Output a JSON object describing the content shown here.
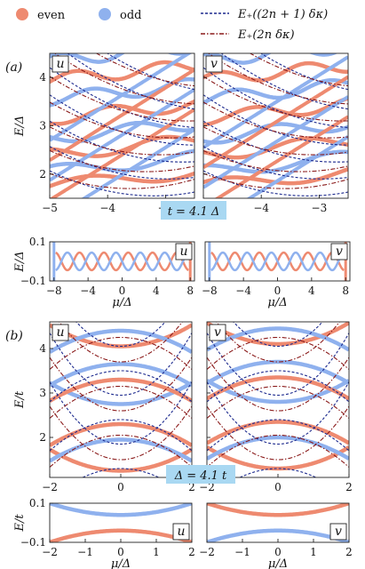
{
  "legend": {
    "even": "even",
    "odd": "odd",
    "dash1": "E₊((2n + 1) δκ)",
    "dash2": "E₊(2n δκ)"
  },
  "colors": {
    "even": "#ee8a70",
    "odd": "#8fb1ee",
    "dashed": "#1d2a8e",
    "dashdot": "#8a1a1a",
    "badge": "#a9d8f2"
  },
  "panel_labels": {
    "a": "(a)",
    "b": "(b)"
  },
  "chart_data": [
    {
      "id": "a_u",
      "type": "line",
      "tag": "u",
      "xlim": [
        -5,
        -2.5
      ],
      "ylim": [
        1.5,
        4.5
      ],
      "xticks": [
        -5,
        -4,
        -3
      ],
      "yticks": [
        2,
        3,
        4
      ],
      "xtick_labels": [
        "−5",
        "−4",
        "−3"
      ],
      "ytick_labels": [
        "2",
        "3",
        "4"
      ],
      "ylabel": "E/Δ",
      "xlabel": ""
    },
    {
      "id": "a_v",
      "type": "line",
      "tag": "v",
      "xlim": [
        -5,
        -2.5
      ],
      "ylim": [
        1.5,
        4.5
      ],
      "xticks": [
        -5,
        -4,
        -3
      ],
      "yticks": [
        2,
        3,
        4
      ],
      "xtick_labels": [
        "−5",
        "−4",
        "−3"
      ],
      "ytick_labels": [],
      "ylabel": "",
      "xlabel": ""
    },
    {
      "id": "a_u_low",
      "type": "line",
      "tag": "u",
      "xlim": [
        -8.5,
        8.5
      ],
      "ylim": [
        -0.1,
        0.1
      ],
      "xticks": [
        -8,
        -4,
        0,
        4,
        8
      ],
      "yticks": [
        -0.1,
        0.1
      ],
      "xtick_labels": [
        "−8",
        "−4",
        "0",
        "4",
        "8"
      ],
      "ytick_labels": [
        "−0.1",
        "0.1"
      ],
      "ylabel": "E/Δ",
      "xlabel": "μ/Δ"
    },
    {
      "id": "a_v_low",
      "type": "line",
      "tag": "v",
      "xlim": [
        -8.5,
        8.5
      ],
      "ylim": [
        -0.1,
        0.1
      ],
      "xticks": [
        -8,
        -4,
        0,
        4,
        8
      ],
      "yticks": [],
      "xtick_labels": [
        "−8",
        "−4",
        "0",
        "4",
        "8"
      ],
      "ytick_labels": [],
      "ylabel": "",
      "xlabel": "μ/Δ"
    },
    {
      "id": "b_u",
      "type": "line",
      "tag": "u",
      "xlim": [
        -2,
        2
      ],
      "ylim": [
        1.1,
        4.6
      ],
      "xticks": [
        -2,
        0,
        2
      ],
      "yticks": [
        2,
        3,
        4
      ],
      "xtick_labels": [
        "−2",
        "0",
        "2"
      ],
      "ytick_labels": [
        "2",
        "3",
        "4"
      ],
      "ylabel": "E/t",
      "xlabel": ""
    },
    {
      "id": "b_v",
      "type": "line",
      "tag": "v",
      "xlim": [
        -2,
        2
      ],
      "ylim": [
        1.1,
        4.6
      ],
      "xticks": [
        -2,
        0,
        2
      ],
      "yticks": [
        2,
        3,
        4
      ],
      "xtick_labels": [
        "−2",
        "0",
        "2"
      ],
      "ytick_labels": [],
      "ylabel": "",
      "xlabel": ""
    },
    {
      "id": "b_u_low",
      "type": "line",
      "tag": "u",
      "xlim": [
        -2,
        2
      ],
      "ylim": [
        -0.1,
        0.1
      ],
      "xticks": [
        -2,
        -1,
        0,
        1,
        2
      ],
      "yticks": [
        -0.1,
        0.1
      ],
      "xtick_labels": [
        "−2",
        "−1",
        "0",
        "1",
        "2"
      ],
      "ytick_labels": [
        "−0.1",
        "0.1"
      ],
      "ylabel": "E/t",
      "xlabel": "μ/Δ"
    },
    {
      "id": "b_v_low",
      "type": "line",
      "tag": "v",
      "xlim": [
        -2,
        2
      ],
      "ylim": [
        -0.1,
        0.1
      ],
      "xticks": [
        -2,
        -1,
        0,
        1,
        2
      ],
      "yticks": [],
      "xtick_labels": [
        "−2",
        "−1",
        "0",
        "1",
        "2"
      ],
      "ytick_labels": [],
      "ylabel": "",
      "xlabel": "μ/Δ"
    }
  ],
  "badges": {
    "a": "t = 4.1 Δ",
    "b": "Δ = 4.1 t"
  }
}
